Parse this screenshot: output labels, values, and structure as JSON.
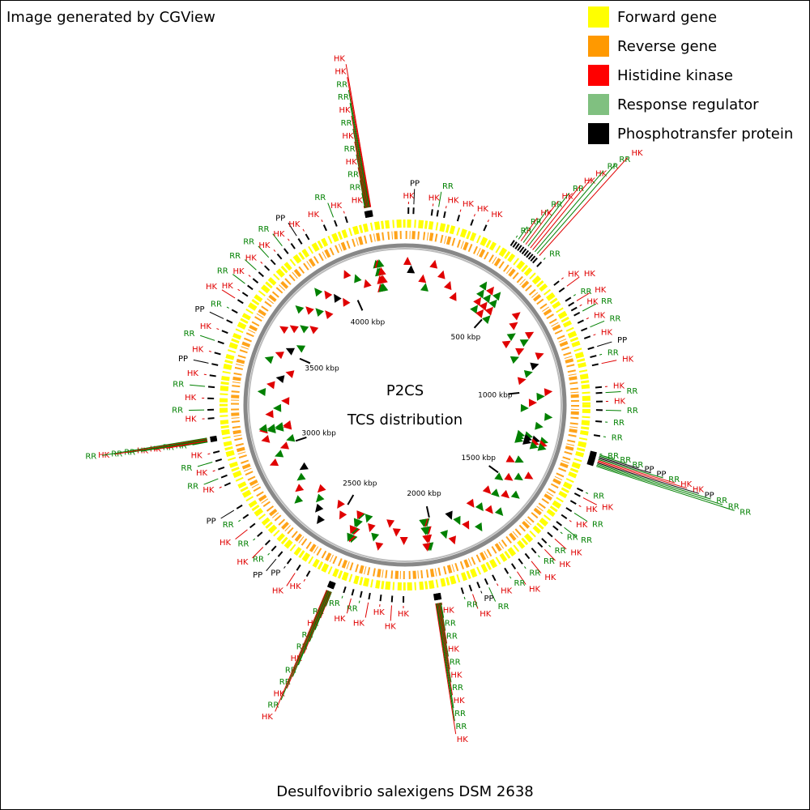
{
  "header": {
    "title": "Image generated by CGView"
  },
  "legend": [
    {
      "label": "Forward gene",
      "color": "#ffff00"
    },
    {
      "label": "Reverse gene",
      "color": "#ff9900"
    },
    {
      "label": "Histidine kinase",
      "color": "#ff0000"
    },
    {
      "label": "Response regulator",
      "color": "#80c080"
    },
    {
      "label": "Phosphotransfer protein",
      "color": "#000000"
    }
  ],
  "center": {
    "title": "P2CS",
    "subtitle": "TCS distribution"
  },
  "footer": {
    "caption": "Desulfovibrio salexigens DSM 2638"
  },
  "genome_length_kbp": 4289,
  "ruler": {
    "ticks": [
      {
        "value": 500,
        "label": "500 kbp"
      },
      {
        "value": 1000,
        "label": "1000 kbp"
      },
      {
        "value": 1500,
        "label": "1500 kbp"
      },
      {
        "value": 2000,
        "label": "2000 kbp"
      },
      {
        "value": 2500,
        "label": "2500 kbp"
      },
      {
        "value": 3000,
        "label": "3000 kbp"
      },
      {
        "value": 3500,
        "label": "3500 kbp"
      },
      {
        "value": 4000,
        "label": "4000 kbp"
      }
    ]
  },
  "label_colors": {
    "HK": "#e00000",
    "RR": "#008000",
    "PP": "#000000"
  },
  "features": {
    "labels": [
      "HK",
      "PP",
      "HK",
      "RR",
      "HK",
      "HK",
      "HK",
      "HK",
      "RR",
      "RR",
      "HK",
      "RR",
      "HK",
      "RR",
      "HK",
      "HK",
      "RR",
      "RR",
      "HK",
      "RR",
      "HK",
      "HK",
      "RR",
      "HK",
      "HK",
      "RR",
      "HK",
      "RR",
      "HK",
      "PP",
      "RR",
      "HK",
      "HK",
      "RR",
      "HK",
      "RR",
      "RR",
      "RR",
      "RR",
      "RR",
      "RR",
      "PP",
      "PP",
      "RR",
      "HK",
      "HK",
      "PP",
      "RR",
      "RR",
      "RR",
      "RR",
      "HK",
      "HK",
      "RR",
      "HK",
      "RR",
      "RR",
      "HK",
      "RR",
      "HK",
      "RR",
      "HK",
      "RR",
      "HK",
      "RR",
      "HK",
      "RR",
      "PP",
      "HK",
      "RR",
      "HK",
      "RR",
      "RR",
      "HK",
      "RR",
      "HK",
      "RR",
      "HK",
      "RR",
      "RR",
      "HK",
      "HK",
      "HK",
      "HK",
      "HK",
      "RR",
      "HK",
      "RR",
      "RR",
      "HK",
      "RR",
      "RR",
      "HK",
      "RR",
      "RR",
      "HK",
      "RR",
      "HK",
      "HK",
      "HK",
      "PP",
      "PP",
      "RR",
      "HK",
      "RR",
      "HK",
      "RR",
      "PP",
      "HK",
      "RR",
      "HK",
      "RR",
      "HK",
      "RR",
      "RR",
      "HK",
      "HK",
      "RR",
      "RR",
      "HK",
      "RR",
      "HK",
      "RR",
      "HK",
      "RR",
      "HK",
      "PP",
      "HK",
      "RR",
      "HK",
      "PP",
      "RR",
      "HK",
      "HK",
      "RR",
      "HK",
      "RR",
      "HK",
      "RR",
      "HK",
      "RR",
      "HK",
      "PP",
      "HK",
      "HK",
      "RR",
      "HK",
      "HK",
      "RR",
      "RR",
      "HK",
      "RR",
      "HK",
      "RR",
      "HK",
      "RR",
      "RR",
      "HK",
      "HK"
    ],
    "positions": [
      12,
      30,
      95,
      115,
      140,
      190,
      240,
      290,
      400,
      410,
      420,
      430,
      440,
      450,
      460,
      470,
      480,
      490,
      500,
      520,
      610,
      640,
      680,
      700,
      720,
      740,
      770,
      800,
      830,
      870,
      900,
      930,
      1010,
      1030,
      1060,
      1090,
      1130,
      1180,
      1240,
      1244,
      1248,
      1252,
      1256,
      1260,
      1264,
      1268,
      1272,
      1276,
      1280,
      1284,
      1380,
      1400,
      1430,
      1460,
      1490,
      1520,
      1540,
      1570,
      1600,
      1620,
      1650,
      1680,
      1710,
      1740,
      1770,
      1820,
      1850,
      1880,
      1910,
      1940,
      2020,
      2022,
      2024,
      2026,
      2028,
      2030,
      2032,
      2034,
      2036,
      2038,
      2040,
      2150,
      2190,
      2230,
      2270,
      2300,
      2330,
      2360,
      2400,
      2402,
      2404,
      2406,
      2408,
      2410,
      2412,
      2414,
      2416,
      2418,
      2500,
      2540,
      2580,
      2620,
      2650,
      2680,
      2720,
      2760,
      2800,
      2840,
      2930,
      2960,
      2990,
      3020,
      3050,
      3090,
      3092,
      3094,
      3096,
      3098,
      3100,
      3102,
      3104,
      3170,
      3200,
      3240,
      3280,
      3320,
      3360,
      3400,
      3440,
      3480,
      3520,
      3560,
      3600,
      3630,
      3660,
      3690,
      3720,
      3750,
      3780,
      3810,
      3840,
      3870,
      3900,
      3930,
      4000,
      4040,
      4080,
      4150,
      4152,
      4154,
      4156,
      4158,
      4160,
      4162,
      4164,
      4166,
      4168,
      4170,
      4172
    ]
  }
}
